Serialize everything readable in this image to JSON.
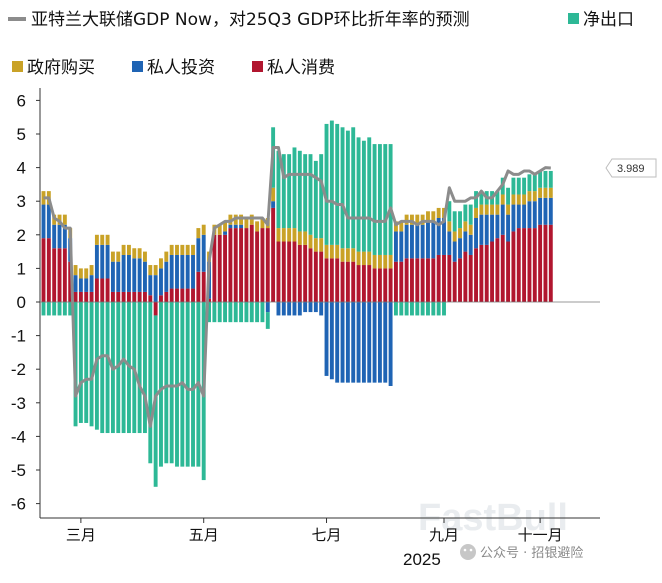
{
  "chart_data": {
    "type": "bar",
    "stacked": true,
    "title": "",
    "xlabel": "2025",
    "ylabel": "",
    "ylim": [
      -6.5,
      6.5
    ],
    "yticks": [
      "6",
      "5",
      "4",
      "3",
      "2",
      "1",
      "0",
      "-1",
      "-2",
      "-3",
      "-4",
      "-5",
      "-6"
    ],
    "month_ticks": [
      {
        "label": "三月",
        "index": 7
      },
      {
        "label": "五月",
        "index": 30
      },
      {
        "label": "七月",
        "index": 53
      },
      {
        "label": "九月",
        "index": 75
      },
      {
        "label": "十一月",
        "index": 93
      }
    ],
    "series": [
      {
        "name": "净出口",
        "color": "#2db896",
        "values": [
          -0.4,
          -0.4,
          -0.4,
          -0.4,
          -0.4,
          -0.4,
          -3.7,
          -3.6,
          -3.6,
          -3.7,
          -3.8,
          -3.9,
          -3.9,
          -3.9,
          -3.9,
          -3.9,
          -3.9,
          -3.9,
          -3.9,
          -3.9,
          -4.8,
          -5.1,
          -4.9,
          -4.8,
          -4.8,
          -4.9,
          -4.9,
          -4.9,
          -4.9,
          -4.9,
          -5.3,
          -0.6,
          -0.6,
          -0.6,
          -0.6,
          -0.6,
          -0.6,
          -0.6,
          -0.6,
          -0.6,
          -0.6,
          -0.6,
          -0.5,
          1.8,
          2.3,
          2.2,
          2.2,
          2.4,
          2.4,
          2.3,
          2.4,
          2.3,
          2.5,
          3.6,
          3.7,
          3.6,
          3.6,
          3.5,
          3.6,
          3.4,
          3.3,
          3.4,
          3.3,
          3.3,
          3.3,
          3.3,
          -0.4,
          -0.4,
          -0.4,
          -0.4,
          -0.4,
          -0.4,
          -0.4,
          -0.4,
          -0.4,
          -0.4,
          0.6,
          0.6,
          0.5,
          0.5,
          0.6,
          0.5,
          0.4,
          0.4,
          0.4,
          0.4,
          0.5,
          0.5,
          0.5,
          0.5,
          0.5,
          0.5,
          0.5,
          0.5,
          0.5,
          0.5
        ]
      },
      {
        "name": "政府购买",
        "color": "#c9a227",
        "values": [
          0.4,
          0.4,
          0.3,
          0.3,
          0.3,
          0.3,
          0.3,
          0.3,
          0.3,
          0.3,
          0.3,
          0.3,
          0.3,
          0.3,
          0.3,
          0.3,
          0.3,
          0.3,
          0.3,
          0.3,
          0.3,
          0.3,
          0.3,
          0.3,
          0.3,
          0.3,
          0.3,
          0.3,
          0.3,
          0.3,
          0.3,
          0.3,
          0.3,
          0.3,
          0.3,
          0.3,
          0.3,
          0.3,
          0.3,
          0.3,
          0.3,
          0.3,
          0.3,
          0.4,
          0.4,
          0.4,
          0.4,
          0.4,
          0.4,
          0.4,
          0.4,
          0.4,
          0.4,
          0.4,
          0.4,
          0.4,
          0.4,
          0.4,
          0.4,
          0.4,
          0.4,
          0.4,
          0.4,
          0.4,
          0.4,
          0.4,
          0.3,
          0.3,
          0.3,
          0.3,
          0.3,
          0.3,
          0.3,
          0.3,
          0.3,
          0.3,
          0.3,
          0.3,
          0.3,
          0.3,
          0.3,
          0.3,
          0.3,
          0.3,
          0.3,
          0.3,
          0.3,
          0.3,
          0.3,
          0.3,
          0.3,
          0.3,
          0.3,
          0.3,
          0.3,
          0.3
        ]
      },
      {
        "name": "私人投资",
        "color": "#1f64b4",
        "values": [
          1.0,
          1.0,
          0.7,
          0.7,
          0.7,
          0.7,
          0.5,
          0.4,
          0.4,
          0.5,
          1.0,
          1.0,
          1.0,
          0.9,
          0.9,
          1.1,
          1.1,
          1.0,
          1.0,
          0.9,
          0.6,
          0.8,
          0.8,
          0.9,
          1.0,
          1.0,
          1.0,
          1.0,
          1.0,
          1.0,
          1.1,
          1.1,
          0.0,
          0.0,
          0.1,
          0.1,
          0.1,
          0.1,
          0.0,
          0.0,
          0.0,
          0.0,
          -0.3,
          0.2,
          -0.4,
          -0.4,
          -0.4,
          -0.4,
          -0.4,
          -0.3,
          -0.3,
          -0.3,
          -0.4,
          -2.2,
          -2.3,
          -2.4,
          -2.4,
          -2.4,
          -2.4,
          -2.4,
          -2.4,
          -2.4,
          -2.4,
          -2.4,
          -2.4,
          -2.5,
          0.9,
          0.9,
          1.0,
          1.0,
          1.0,
          1.0,
          1.1,
          1.1,
          1.1,
          1.1,
          0.7,
          0.6,
          0.6,
          0.6,
          0.6,
          0.9,
          0.9,
          0.9,
          0.8,
          0.7,
          0.9,
          0.8,
          0.8,
          0.7,
          0.7,
          0.8,
          0.8,
          0.8,
          0.8,
          0.8
        ]
      },
      {
        "name": "私人消费",
        "color": "#b1162f",
        "values": [
          1.9,
          1.9,
          1.6,
          1.6,
          1.6,
          1.2,
          0.3,
          0.3,
          0.3,
          0.3,
          0.7,
          0.7,
          0.7,
          0.3,
          0.3,
          0.3,
          0.3,
          0.3,
          0.3,
          0.3,
          0.2,
          -0.4,
          0.2,
          0.3,
          0.4,
          0.4,
          0.4,
          0.4,
          0.4,
          0.9,
          0.9,
          0.1,
          2.0,
          2.0,
          2.0,
          2.2,
          2.2,
          2.2,
          2.2,
          2.3,
          2.1,
          2.2,
          2.2,
          2.8,
          1.8,
          1.8,
          1.8,
          1.8,
          1.7,
          1.7,
          1.6,
          1.5,
          1.5,
          1.3,
          1.3,
          1.3,
          1.2,
          1.2,
          1.2,
          1.1,
          1.1,
          1.1,
          1.0,
          1.0,
          1.0,
          1.0,
          1.2,
          1.2,
          1.3,
          1.3,
          1.3,
          1.3,
          1.3,
          1.3,
          1.4,
          1.4,
          1.4,
          1.2,
          1.3,
          1.5,
          1.4,
          1.6,
          1.7,
          1.7,
          1.8,
          1.9,
          2.0,
          1.8,
          2.1,
          2.2,
          2.2,
          2.2,
          2.2,
          2.3,
          2.3,
          2.3
        ]
      }
    ],
    "line": {
      "name": "亚特兰大联储GDP Now，对25Q3 GDP环比折年率的预测",
      "color": "#8c8c8c",
      "values": [
        3.1,
        3.1,
        2.5,
        2.4,
        2.2,
        2.2,
        -2.8,
        -2.4,
        -2.3,
        -2.3,
        -1.7,
        -1.6,
        -1.6,
        -2.0,
        -1.9,
        -1.7,
        -1.9,
        -2.0,
        -2.5,
        -2.8,
        -3.7,
        -2.8,
        -2.6,
        -2.5,
        -2.5,
        -2.5,
        -2.4,
        -2.6,
        -2.6,
        -2.4,
        -2.8,
        1.2,
        2.2,
        2.3,
        2.4,
        2.4,
        2.5,
        2.5,
        2.5,
        2.5,
        2.5,
        2.5,
        2.3,
        4.6,
        4.6,
        3.7,
        3.8,
        3.8,
        3.8,
        3.8,
        3.8,
        3.7,
        3.6,
        3.0,
        3.0,
        2.9,
        2.9,
        2.5,
        2.5,
        2.5,
        2.5,
        2.5,
        2.4,
        2.4,
        2.4,
        2.8,
        2.3,
        2.4,
        2.4,
        2.4,
        2.3,
        2.4,
        2.4,
        2.4,
        2.3,
        2.4,
        3.4,
        3.0,
        3.0,
        3.0,
        3.1,
        3.1,
        3.3,
        3.1,
        3.1,
        3.3,
        3.5,
        3.9,
        3.8,
        3.8,
        3.9,
        3.9,
        3.8,
        3.9,
        4.0,
        3.989
      ]
    },
    "callout": "3.989",
    "legend": {
      "line_label": "亚特兰大联储GDP Now，对25Q3 GDP环比折年率的预测",
      "items": [
        {
          "label": "净出口",
          "color": "#2db896"
        },
        {
          "label": "政府购买",
          "color": "#c9a227"
        },
        {
          "label": "私人投资",
          "color": "#1f64b4"
        },
        {
          "label": "私人消费",
          "color": "#b1162f"
        }
      ]
    }
  },
  "watermark": {
    "source": "公众号 · 招银避险",
    "faint": "FastBull"
  }
}
